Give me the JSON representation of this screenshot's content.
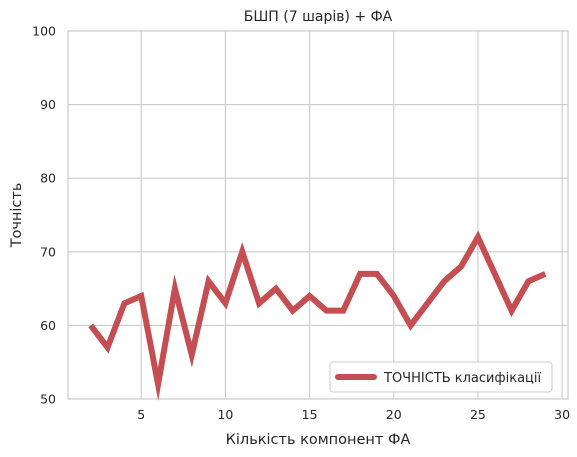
{
  "chart_data": {
    "type": "line",
    "title": "БШП (7 шарів) + ФА",
    "xlabel": "Кількість компонент ФА",
    "ylabel": "Точність",
    "xlim": [
      0.65,
      30.35
    ],
    "ylim": [
      50,
      100
    ],
    "xticks": [
      5,
      10,
      15,
      20,
      25,
      30
    ],
    "yticks": [
      50,
      60,
      70,
      80,
      90,
      100
    ],
    "grid": true,
    "legend_position": "lower-right",
    "series": [
      {
        "name": "ТОЧНІСТЬ класифікації",
        "color": "#c44e52",
        "x": [
          2,
          3,
          4,
          5,
          6,
          7,
          8,
          9,
          10,
          11,
          12,
          13,
          14,
          15,
          16,
          17,
          18,
          19,
          20,
          21,
          22,
          23,
          24,
          25,
          26,
          27,
          28,
          29
        ],
        "y": [
          60,
          57,
          63,
          64,
          52,
          65,
          56,
          66,
          63,
          70,
          63,
          65,
          62,
          64,
          62,
          62,
          67,
          67,
          64,
          60,
          63,
          66,
          68,
          72,
          67,
          62,
          66,
          67
        ]
      }
    ]
  }
}
